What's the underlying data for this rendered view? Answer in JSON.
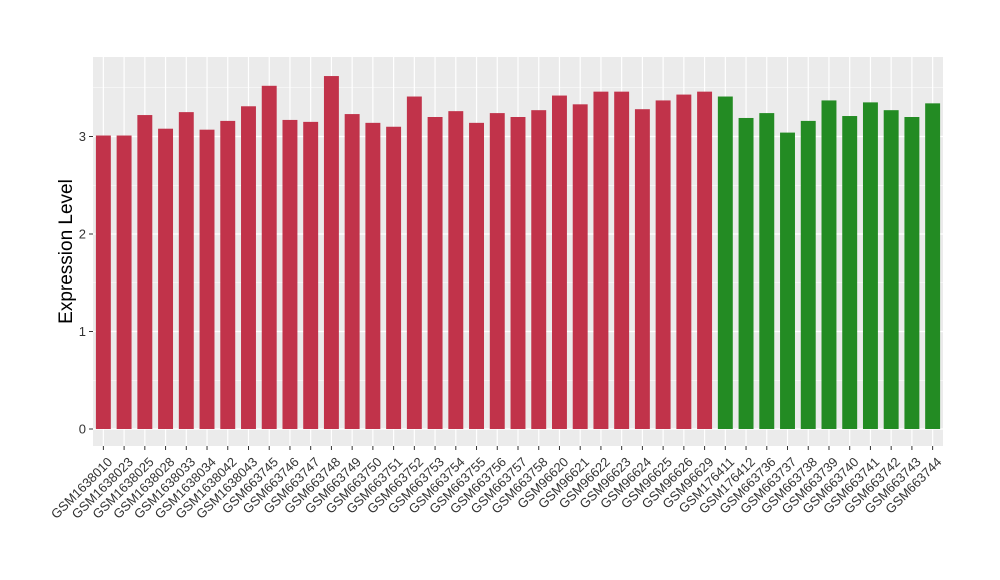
{
  "chart_data": {
    "type": "bar",
    "ylabel": "Expression Level",
    "xlabel": "",
    "ylim": [
      0,
      3.8
    ],
    "yticks": [
      0,
      1,
      2,
      3
    ],
    "grid": true,
    "panel_background": "#ebebeb",
    "grid_color": "#ffffff",
    "categories": [
      "GSM1638010",
      "GSM1638023",
      "GSM1638025",
      "GSM1638028",
      "GSM1638033",
      "GSM1638034",
      "GSM1638042",
      "GSM1638043",
      "GSM663745",
      "GSM663746",
      "GSM663747",
      "GSM663748",
      "GSM663749",
      "GSM663750",
      "GSM663751",
      "GSM663752",
      "GSM663753",
      "GSM663754",
      "GSM663755",
      "GSM663756",
      "GSM663757",
      "GSM663758",
      "GSM96620",
      "GSM96621",
      "GSM96622",
      "GSM96623",
      "GSM96624",
      "GSM96625",
      "GSM96626",
      "GSM96629",
      "GSM176411",
      "GSM176412",
      "GSM663736",
      "GSM663737",
      "GSM663738",
      "GSM663739",
      "GSM663740",
      "GSM663741",
      "GSM663742",
      "GSM663743",
      "GSM663744"
    ],
    "values": [
      3.01,
      3.01,
      3.22,
      3.08,
      3.25,
      3.07,
      3.16,
      3.31,
      3.52,
      3.17,
      3.15,
      3.62,
      3.23,
      3.14,
      3.1,
      3.41,
      3.2,
      3.26,
      3.14,
      3.24,
      3.2,
      3.27,
      3.42,
      3.33,
      3.46,
      3.46,
      3.28,
      3.37,
      3.43,
      3.46,
      3.41,
      3.19,
      3.24,
      3.04,
      3.16,
      3.37,
      3.21,
      3.35,
      3.27,
      3.2,
      3.34
    ],
    "colors": {
      "group1": "#c1334a",
      "group2": "#238b23"
    },
    "group1_count": 30
  }
}
